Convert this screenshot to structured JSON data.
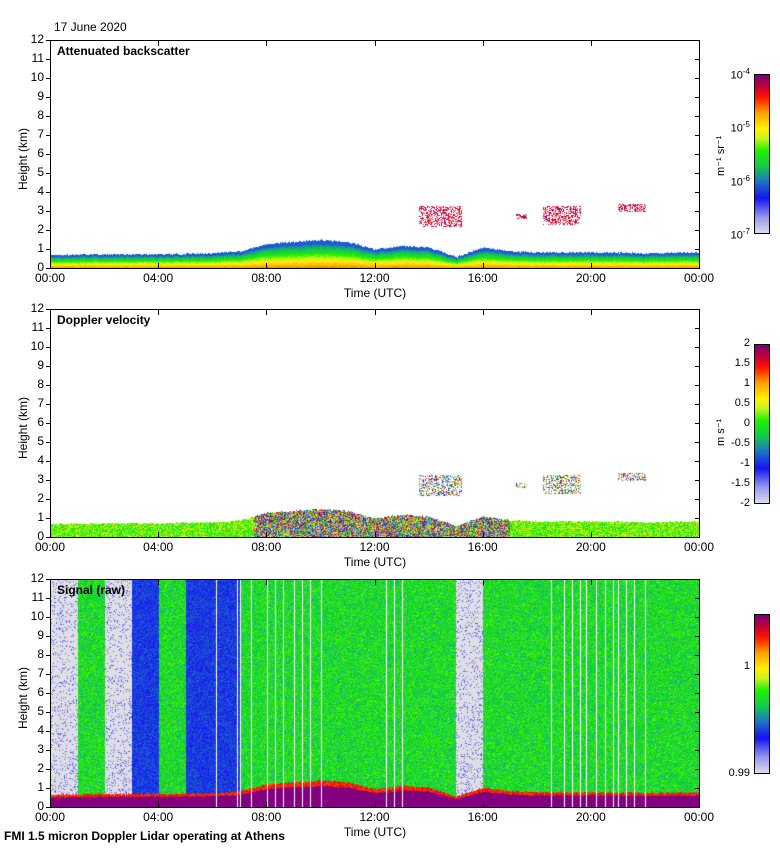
{
  "date": "17 June 2020",
  "footer": "FMI 1.5 micron Doppler Lidar operating at Athens",
  "chart_data": [
    {
      "type": "heatmap",
      "title": "Attenuated backscatter",
      "xlabel": "Time (UTC)",
      "ylabel": "Height (km)",
      "xticks": [
        "00:00",
        "04:00",
        "08:00",
        "12:00",
        "16:00",
        "20:00",
        "00:00"
      ],
      "yticks": [
        "0",
        "1",
        "2",
        "3",
        "4",
        "5",
        "6",
        "7",
        "8",
        "9",
        "10",
        "11",
        "12"
      ],
      "ylim": [
        0,
        12
      ],
      "xlim_hours": [
        0,
        24
      ],
      "colorbar": {
        "label": "m-1 sr-1",
        "label_display": "m⁻¹ sr⁻¹",
        "scale": "log",
        "ticks": [
          "10^-7",
          "10^-6",
          "10^-5",
          "10^-4"
        ],
        "range": [
          1e-07,
          0.0001
        ]
      },
      "boundary_layer_top_km": [
        [
          0,
          0.7
        ],
        [
          2,
          0.75
        ],
        [
          4,
          0.75
        ],
        [
          6,
          0.8
        ],
        [
          7,
          0.9
        ],
        [
          8,
          1.3
        ],
        [
          9,
          1.4
        ],
        [
          10,
          1.5
        ],
        [
          11,
          1.4
        ],
        [
          12,
          1.0
        ],
        [
          13,
          1.2
        ],
        [
          14,
          1.1
        ],
        [
          15,
          0.6
        ],
        [
          16,
          1.1
        ],
        [
          17,
          0.9
        ],
        [
          18,
          0.85
        ],
        [
          20,
          0.85
        ],
        [
          22,
          0.8
        ],
        [
          24,
          0.85
        ]
      ],
      "clouds": [
        {
          "start_h": 13.6,
          "end_h": 15.2,
          "base_km": 2.2,
          "top_km": 3.3
        },
        {
          "start_h": 17.2,
          "end_h": 17.6,
          "base_km": 2.6,
          "top_km": 2.9
        },
        {
          "start_h": 18.2,
          "end_h": 19.6,
          "base_km": 2.3,
          "top_km": 3.3
        },
        {
          "start_h": 21.0,
          "end_h": 22.0,
          "base_km": 3.0,
          "top_km": 3.4
        }
      ]
    },
    {
      "type": "heatmap",
      "title": "Doppler velocity",
      "xlabel": "Time (UTC)",
      "ylabel": "Height (km)",
      "xticks": [
        "00:00",
        "04:00",
        "08:00",
        "12:00",
        "16:00",
        "20:00",
        "00:00"
      ],
      "yticks": [
        "0",
        "1",
        "2",
        "3",
        "4",
        "5",
        "6",
        "7",
        "8",
        "9",
        "10",
        "11",
        "12"
      ],
      "ylim": [
        0,
        12
      ],
      "colorbar": {
        "label": "m s-1",
        "label_display": "m s⁻¹",
        "scale": "linear",
        "ticks": [
          "-2",
          "-1.5",
          "-1",
          "-0.5",
          "0",
          "0.5",
          "1",
          "1.5",
          "2"
        ],
        "range": [
          -2,
          2
        ]
      }
    },
    {
      "type": "heatmap",
      "title": "Signal (raw)",
      "xlabel": "Time (UTC)",
      "ylabel": "Height (km)",
      "xticks": [
        "00:00",
        "04:00",
        "08:00",
        "12:00",
        "16:00",
        "20:00",
        "00:00"
      ],
      "yticks": [
        "0",
        "1",
        "2",
        "3",
        "4",
        "5",
        "6",
        "7",
        "8",
        "9",
        "10",
        "11",
        "12"
      ],
      "ylim": [
        0,
        12
      ],
      "colorbar": {
        "label": "",
        "scale": "linear",
        "ticks": [
          "0.99",
          "1"
        ],
        "range": [
          0.99,
          1.005
        ]
      },
      "low_signal_periods_h": [
        [
          0,
          1
        ],
        [
          2,
          3
        ],
        [
          15,
          16
        ]
      ],
      "blue_periods_h": [
        [
          3,
          4
        ],
        [
          5,
          7
        ]
      ],
      "data_gaps_h": [
        6.1,
        6.9,
        7.0,
        7.4,
        8.0,
        8.3,
        8.6,
        9.0,
        9.3,
        9.6,
        10.0,
        12.4,
        12.7,
        13.0,
        18.5,
        19.0,
        19.3,
        19.6,
        19.8,
        20.2,
        20.5,
        20.8,
        21.0,
        21.3,
        21.6,
        22.0
      ]
    }
  ]
}
